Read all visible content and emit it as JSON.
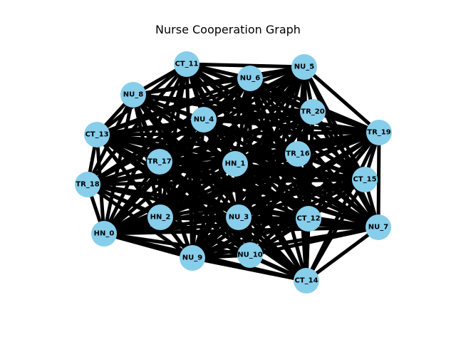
{
  "title": "Nurse Cooperation Graph",
  "node_color": "#87CEEB",
  "edge_color": "#000000",
  "nodes": [
    {
      "id": "HN_0"
    },
    {
      "id": "HN_1"
    },
    {
      "id": "HN_2"
    },
    {
      "id": "NU_3"
    },
    {
      "id": "NU_4"
    },
    {
      "id": "NU_5"
    },
    {
      "id": "NU_6"
    },
    {
      "id": "NU_7"
    },
    {
      "id": "NU_8"
    },
    {
      "id": "NU_9"
    },
    {
      "id": "NU_10"
    },
    {
      "id": "CT_11"
    },
    {
      "id": "CT_12"
    },
    {
      "id": "CT_13"
    },
    {
      "id": "CT_14"
    },
    {
      "id": "CT_15"
    },
    {
      "id": "TR_16"
    },
    {
      "id": "TR_17"
    },
    {
      "id": "TR_18"
    },
    {
      "id": "TR_19"
    },
    {
      "id": "TR_20"
    }
  ],
  "edges": "complete"
}
